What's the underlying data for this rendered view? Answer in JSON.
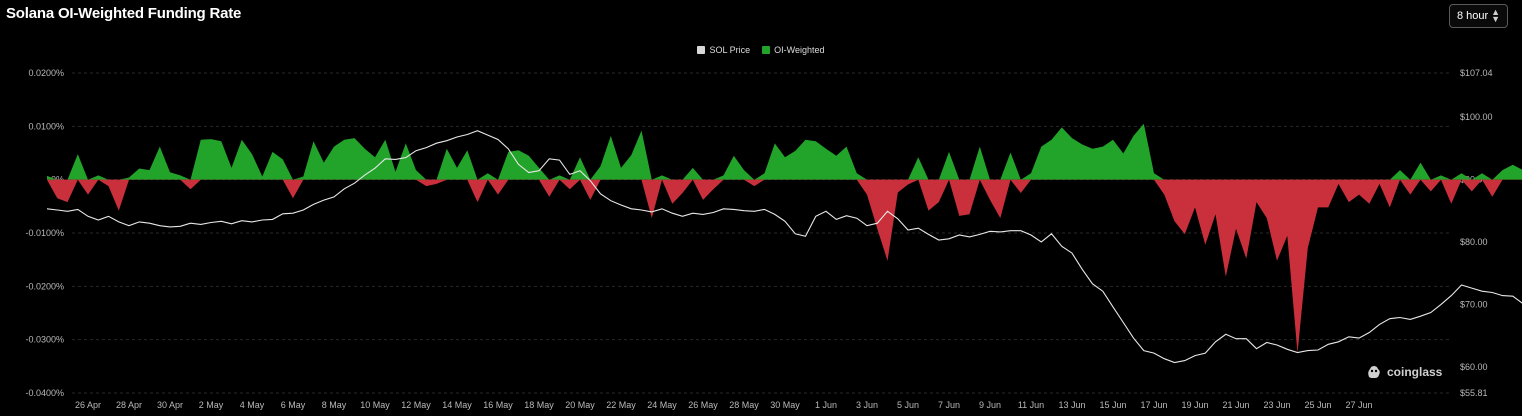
{
  "header": {
    "title": "Solana OI-Weighted Funding Rate",
    "interval": "8 hour"
  },
  "watermark": "coinglass",
  "colors": {
    "background": "#000000",
    "positive": "#22a32a",
    "negative": "#c9303c",
    "price_line": "#e8e8e8",
    "grid": "#2a2a2a"
  },
  "chart_data": {
    "type": "area",
    "title": "Solana OI-Weighted Funding Rate",
    "legend": {
      "position": "top-center",
      "items": [
        "SOL Price",
        "OI-Weighted"
      ]
    },
    "grid": true,
    "x_ticks": [
      "26 Apr",
      "28 Apr",
      "30 Apr",
      "2 May",
      "4 May",
      "6 May",
      "8 May",
      "10 May",
      "12 May",
      "14 May",
      "16 May",
      "18 May",
      "20 May",
      "22 May",
      "24 May",
      "26 May",
      "28 May",
      "30 May",
      "1 Jun",
      "3 Jun",
      "5 Jun",
      "7 Jun",
      "9 Jun",
      "11 Jun",
      "13 Jun",
      "15 Jun",
      "17 Jun",
      "19 Jun",
      "21 Jun",
      "23 Jun",
      "25 Jun",
      "27 Jun"
    ],
    "y_left": {
      "ticks": [
        "0.0200%",
        "0.0100%",
        "0%",
        "-0.0100%",
        "-0.0200%",
        "-0.0300%",
        "-0.0400%"
      ],
      "tick_values": [
        0.02,
        0.01,
        0,
        -0.01,
        -0.02,
        -0.03,
        -0.04
      ],
      "range": [
        -0.04,
        0.02
      ]
    },
    "y_right": {
      "ticks": [
        "$107.04",
        "$100.00",
        "$90.00",
        "$80.00",
        "$70.00",
        "$60.00",
        "$55.81"
      ],
      "tick_values": [
        107.04,
        100,
        90,
        80,
        70,
        60,
        55.81
      ],
      "range": [
        55.81,
        107.04
      ]
    },
    "series": [
      {
        "name": "OI-Weighted",
        "axis": "left",
        "x_start": 25.0,
        "x_step": 0.5,
        "values": [
          0.0007,
          -0.0035,
          -0.0042,
          0.0048,
          -0.0028,
          0.0008,
          -0.0012,
          -0.0058,
          0.0004,
          0.0021,
          0.0018,
          0.0062,
          0.0014,
          0.0008,
          -0.0018,
          0.0075,
          0.0076,
          0.0072,
          0.0022,
          0.0075,
          0.0048,
          0.0006,
          0.0052,
          0.0038,
          -0.0035,
          0.0006,
          0.0072,
          0.0032,
          0.0062,
          0.0075,
          0.0078,
          0.0058,
          0.0042,
          0.0075,
          0.0015,
          0.0068,
          0.0018,
          -0.0012,
          -0.0008,
          0.0058,
          0.0022,
          0.0055,
          -0.0042,
          0.0012,
          -0.0028,
          0.0052,
          0.0055,
          0.0045,
          0.0022,
          -0.0032,
          0.0008,
          -0.0018,
          0.0042,
          -0.0038,
          0.0025,
          0.0082,
          0.0022,
          0.0046,
          0.0092,
          -0.0072,
          0.0008,
          -0.0045,
          -0.0025,
          0.0022,
          -0.0038,
          -0.0018,
          0.0008,
          0.0045,
          0.0018,
          -0.0012,
          0.0012,
          0.0068,
          0.0042,
          0.0054,
          0.0075,
          0.0072,
          0.0058,
          0.0045,
          0.0062,
          0.0012,
          -0.0028,
          -0.0092,
          -0.0152,
          -0.0024,
          -0.0009,
          0.0042,
          -0.0058,
          -0.0042,
          0.0052,
          -0.0068,
          -0.0065,
          0.0062,
          -0.0038,
          -0.0072,
          0.0051,
          -0.0025,
          0.0012,
          0.0062,
          0.0075,
          0.0098,
          0.0078,
          0.0066,
          0.0058,
          0.0062,
          0.0075,
          0.0049,
          0.0082,
          0.0105,
          0.0012,
          -0.0028,
          -0.0078,
          -0.0102,
          -0.0052,
          -0.0122,
          -0.0065,
          -0.0182,
          -0.0092,
          -0.0148,
          -0.0042,
          -0.0072,
          -0.0152,
          -0.0105,
          -0.0325,
          -0.0128,
          -0.0052,
          -0.0052,
          -0.0008,
          -0.0042,
          -0.0028,
          -0.0045,
          -0.0008,
          -0.0052,
          0.0018,
          -0.0028,
          0.0032,
          -0.0022,
          0.0008,
          -0.0045,
          0.0012,
          -0.0022,
          0.0012,
          -0.0032,
          0.0018,
          0.0028,
          0.0018,
          -0.0012,
          0.0008,
          -0.0015,
          -0.0025,
          0.0052,
          0.0092,
          0.0032,
          0.0032,
          0.0065,
          0.0035,
          0.0042,
          0.0018,
          -0.0025,
          -0.0055,
          -0.0072,
          -0.0025,
          -0.0052,
          -0.0145,
          -0.0035,
          -0.0085,
          -0.0042,
          0.0075,
          0.0072,
          0.0052,
          0.0052,
          0.0052,
          0.0072
        ]
      },
      {
        "name": "SOL Price",
        "axis": "right",
        "x_start": 25.0,
        "x_step": 0.5,
        "values": [
          85.3,
          85.1,
          84.9,
          85.2,
          84.1,
          83.5,
          84.1,
          83.2,
          82.6,
          83.2,
          83.0,
          82.6,
          82.4,
          82.5,
          83.0,
          82.8,
          83.1,
          83.3,
          82.9,
          83.4,
          83.2,
          83.5,
          83.6,
          84.5,
          84.6,
          85.1,
          86.0,
          86.7,
          87.2,
          88.5,
          89.4,
          90.7,
          91.8,
          93.3,
          93.2,
          93.5,
          94.6,
          95.1,
          95.8,
          96.2,
          96.8,
          97.2,
          97.8,
          97.1,
          96.4,
          94.9,
          92.4,
          91.1,
          91.4,
          93.3,
          93.1,
          90.8,
          91.4,
          89.8,
          87.7,
          86.6,
          85.9,
          85.3,
          85.1,
          84.8,
          85.3,
          84.6,
          84.1,
          84.6,
          84.4,
          84.7,
          85.3,
          85.2,
          85.0,
          84.9,
          85.2,
          84.4,
          83.3,
          81.3,
          80.9,
          84.1,
          84.9,
          83.6,
          84.2,
          83.8,
          82.6,
          83.0,
          84.9,
          83.7,
          81.9,
          82.2,
          81.2,
          80.3,
          80.5,
          81.1,
          80.8,
          81.2,
          81.7,
          81.6,
          81.8,
          81.8,
          81.1,
          80.0,
          81.3,
          79.3,
          78.2,
          75.6,
          73.3,
          72.1,
          69.6,
          67.1,
          64.6,
          62.6,
          62.2,
          61.3,
          60.7,
          61.0,
          61.8,
          62.2,
          64.0,
          65.2,
          64.5,
          64.5,
          62.9,
          63.9,
          63.5,
          62.8,
          62.3,
          62.6,
          62.7,
          63.6,
          64.0,
          64.8,
          64.6,
          65.5,
          66.8,
          67.7,
          67.9,
          67.6,
          68.1,
          68.7,
          70.0,
          71.4,
          73.1,
          72.6,
          72.1,
          71.9,
          71.4,
          71.3,
          70.1,
          68.7,
          67.6,
          66.6,
          68.1,
          68.4,
          68.7,
          70.6,
          72.2,
          71.9,
          72.5,
          71.7,
          71.6,
          71.6,
          70.5,
          69.2,
          67.0,
          67.1,
          68.5,
          68.6,
          67.8,
          69.6,
          70.3,
          72.1,
          72.1,
          71.6,
          71.8,
          72.3,
          71.3
        ]
      }
    ]
  }
}
